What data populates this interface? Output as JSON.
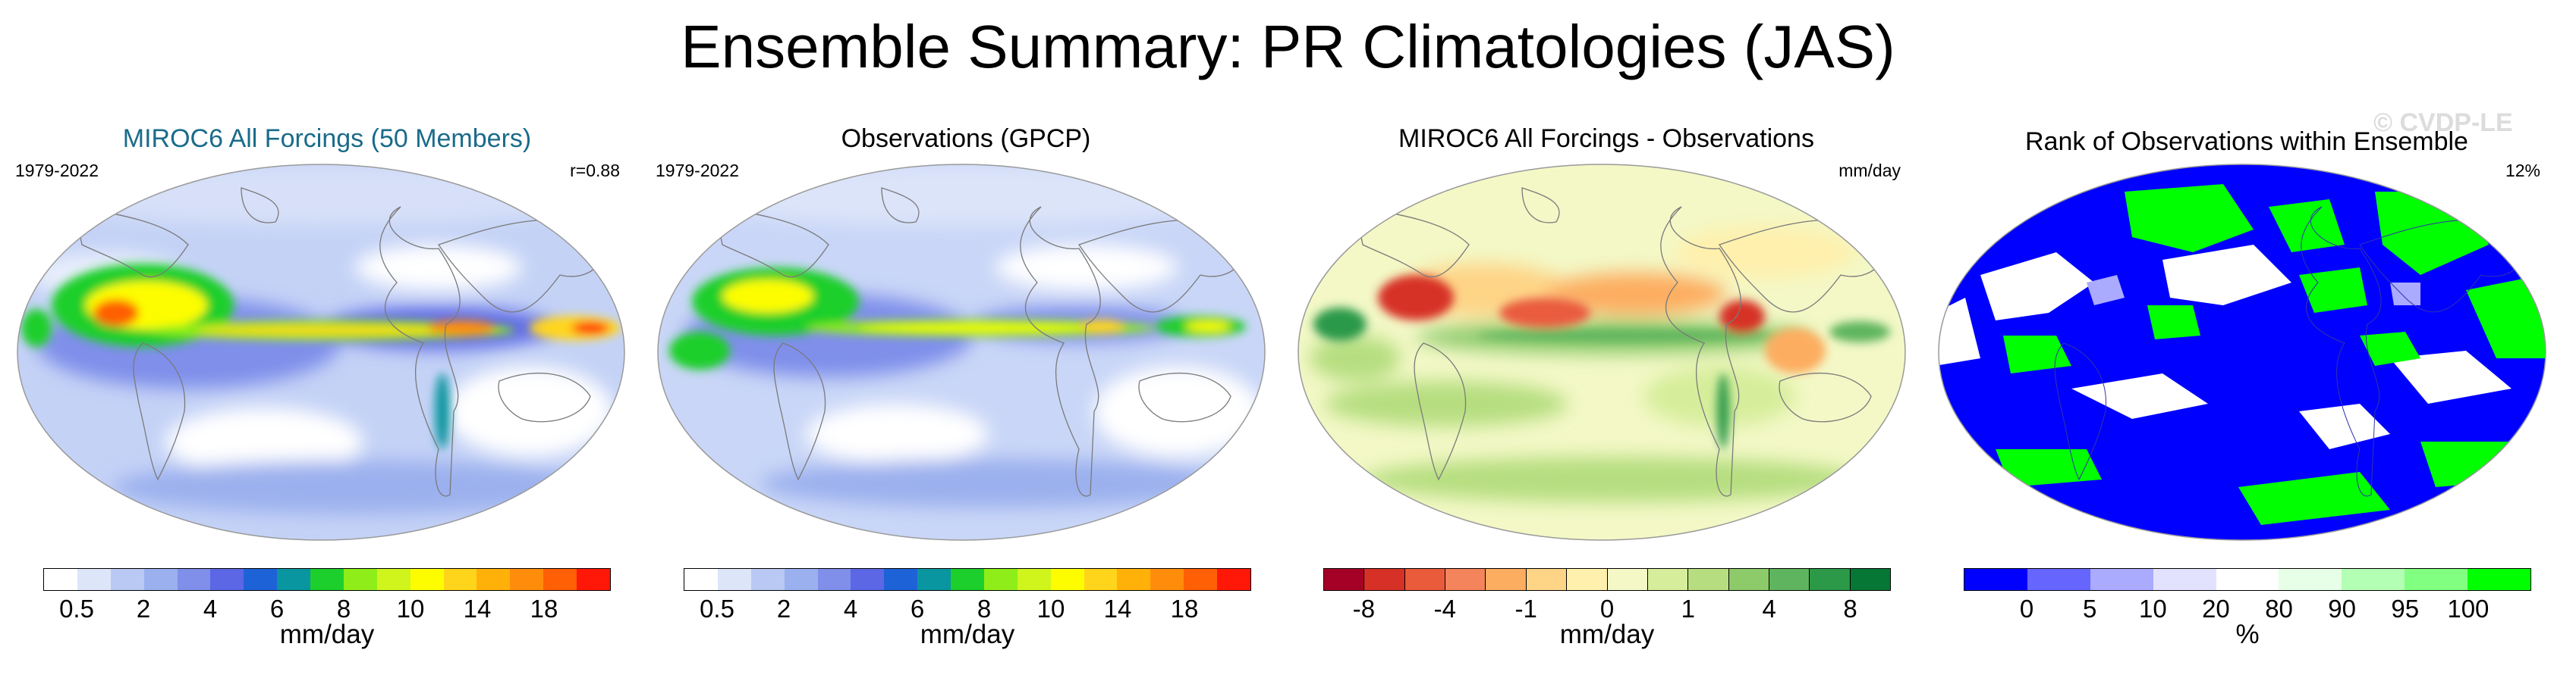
{
  "title": "Ensemble Summary: PR Climatologies (JAS)",
  "watermark": "© CVDP-LE",
  "panels": [
    {
      "title": "MIROC6 All Forcings (50 Members)",
      "title_color": "#1a6b8a",
      "left_label": "1979-2022",
      "right_label": "r=0.88"
    },
    {
      "title": "Observations (GPCP)",
      "title_color": "#000000",
      "left_label": "1979-2022",
      "right_label": ""
    },
    {
      "title": "MIROC6 All Forcings - Observations",
      "title_color": "#000000",
      "left_label": "",
      "right_label": "mm/day"
    },
    {
      "title": "Rank of Observations within Ensemble",
      "title_color": "#000000",
      "left_label": "",
      "right_label": "12%"
    }
  ],
  "colorbars": {
    "precip": {
      "unit": "mm/day",
      "colors": [
        "#ffffff",
        "#dde5f9",
        "#b9c9f4",
        "#9bb0ee",
        "#7f8fea",
        "#5b67e4",
        "#1e62d8",
        "#0a96a0",
        "#1dcf2c",
        "#8fee19",
        "#cff51d",
        "#fdfd00",
        "#ffd51b",
        "#ffb10a",
        "#ff8d0b",
        "#ff5f05",
        "#ff1708"
      ],
      "tick_labels": [
        "0.5",
        "2",
        "4",
        "6",
        "8",
        "10",
        "14",
        "18"
      ]
    },
    "diff": {
      "unit": "mm/day",
      "colors": [
        "#a50026",
        "#d73027",
        "#ea5b3c",
        "#f4845b",
        "#fdad60",
        "#fed486",
        "#fff0ad",
        "#f3f8c6",
        "#d6ee9b",
        "#b6de80",
        "#8cca6a",
        "#5fb55f",
        "#2b9948",
        "#077735"
      ],
      "tick_labels": [
        "-8",
        "-4",
        "-1",
        "0",
        "1",
        "4",
        "8"
      ]
    },
    "rank": {
      "unit": "%",
      "colors": [
        "#0000ff",
        "#6666ff",
        "#aaaaff",
        "#e2e2ff",
        "#ffffff",
        "#e6ffe6",
        "#b3ffb3",
        "#80ff80",
        "#00ff00"
      ],
      "tick_labels": [
        "0",
        "5",
        "10",
        "20",
        "80",
        "90",
        "95",
        "100"
      ]
    }
  },
  "chart_data": [
    {
      "type": "heatmap",
      "title": "MIROC6 All Forcings (50 Members)",
      "subtitle": "1979-2022",
      "annotation": "r=0.88",
      "units": "mm/day",
      "levels": [
        0.5,
        1,
        2,
        3,
        4,
        5,
        6,
        7,
        8,
        9,
        10,
        12,
        14,
        16,
        18,
        20
      ],
      "note": "Global JAS precipitation climatology, Robinson projection"
    },
    {
      "type": "heatmap",
      "title": "Observations (GPCP)",
      "subtitle": "1979-2022",
      "units": "mm/day",
      "levels": [
        0.5,
        1,
        2,
        3,
        4,
        5,
        6,
        7,
        8,
        9,
        10,
        12,
        14,
        16,
        18,
        20
      ]
    },
    {
      "type": "heatmap",
      "title": "MIROC6 All Forcings - Observations",
      "units": "mm/day",
      "levels": [
        -8,
        -6,
        -4,
        -2,
        -1,
        -0.5,
        0,
        0.5,
        1,
        2,
        4,
        6,
        8
      ]
    },
    {
      "type": "heatmap",
      "title": "Rank of Observations within Ensemble",
      "annotation": "12%",
      "units": "%",
      "levels": [
        0,
        5,
        10,
        20,
        80,
        90,
        95,
        100
      ]
    }
  ]
}
